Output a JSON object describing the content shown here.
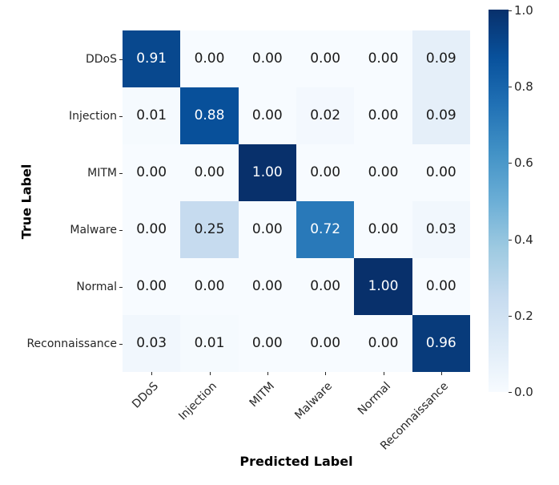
{
  "chart_data": {
    "type": "heatmap",
    "title": "",
    "xlabel": "Predicted Label",
    "ylabel": "True Label",
    "categories": [
      "DDoS",
      "Injection",
      "MITM",
      "Malware",
      "Normal",
      "Reconnaissance"
    ],
    "matrix": [
      [
        0.91,
        0.0,
        0.0,
        0.0,
        0.0,
        0.09
      ],
      [
        0.01,
        0.88,
        0.0,
        0.02,
        0.0,
        0.09
      ],
      [
        0.0,
        0.0,
        1.0,
        0.0,
        0.0,
        0.0
      ],
      [
        0.0,
        0.25,
        0.0,
        0.72,
        0.0,
        0.03
      ],
      [
        0.0,
        0.0,
        0.0,
        0.0,
        1.0,
        0.0
      ],
      [
        0.03,
        0.01,
        0.0,
        0.0,
        0.0,
        0.96
      ]
    ],
    "value_format_decimals": 2,
    "vmin": 0.0,
    "vmax": 1.0,
    "colormap": "Blues",
    "colormap_stops": [
      "#f7fbff",
      "#deebf7",
      "#c6dbef",
      "#9ecae1",
      "#6baed6",
      "#4292c6",
      "#2171b5",
      "#08519c",
      "#08306b"
    ],
    "colorbar_ticks": [
      "1.0",
      "0.8",
      "0.6",
      "0.4",
      "0.2",
      "0.0"
    ],
    "annotation_color_light": "#ffffff",
    "annotation_color_dark": "#1a1a1a",
    "grid_on": false,
    "legend_position": "colorbar-right"
  }
}
